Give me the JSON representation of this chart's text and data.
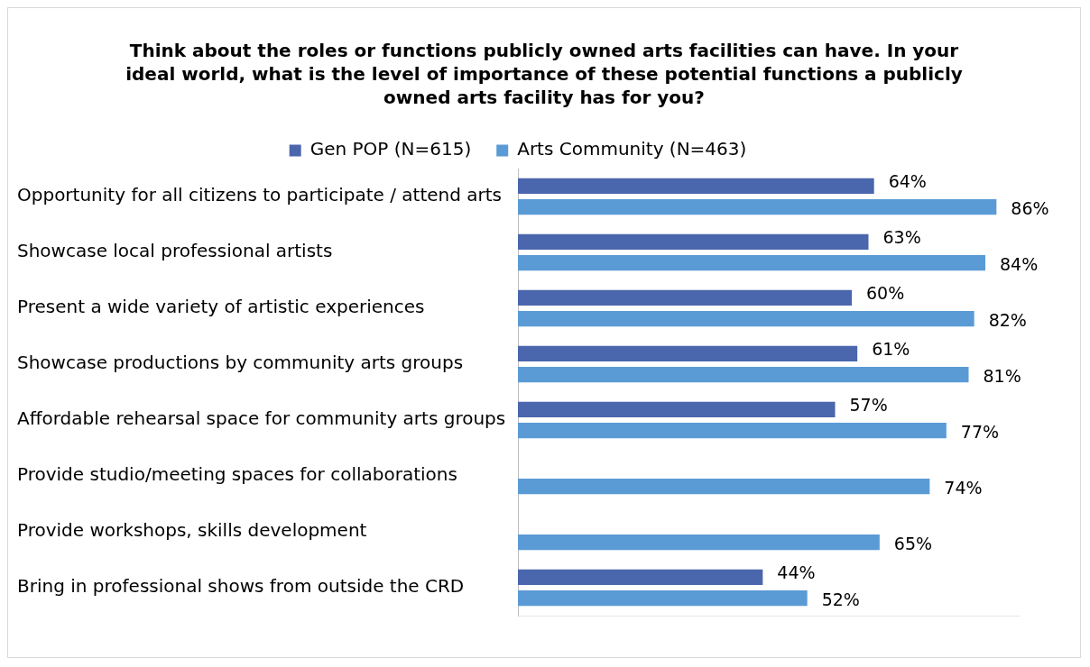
{
  "chart_data": {
    "type": "bar",
    "orientation": "horizontal",
    "relative": false,
    "title": "Think about the roles or functions publicly owned arts facilities can have. In your ideal world, what is the level of importance of these potential functions a publicly owned arts facility has for you?",
    "categories": [
      "Opportunity for all citizens to participate / attend arts",
      "Showcase local professional artists",
      "Present a wide variety of artistic experiences",
      "Showcase productions by community arts groups",
      "Affordable rehearsal space for community arts groups",
      "Provide studio/meeting spaces for collaborations",
      "Provide workshops, skills development",
      "Bring in professional shows from outside the CRD"
    ],
    "series": [
      {
        "name": "Gen POP (N=615)",
        "color": "#4a66ac",
        "values": [
          64,
          63,
          60,
          61,
          57,
          null,
          null,
          44
        ],
        "value_labels": [
          "64%",
          "63%",
          "60%",
          "61%",
          "57%",
          null,
          null,
          "44%"
        ]
      },
      {
        "name": "Arts Community (N=463)",
        "color": "#5b9bd5",
        "values": [
          86,
          84,
          82,
          81,
          77,
          74,
          65,
          52
        ],
        "value_labels": [
          "86%",
          "84%",
          "82%",
          "81%",
          "77%",
          "74%",
          "65%",
          "52%"
        ]
      }
    ],
    "legend": "top",
    "grid": false
  }
}
